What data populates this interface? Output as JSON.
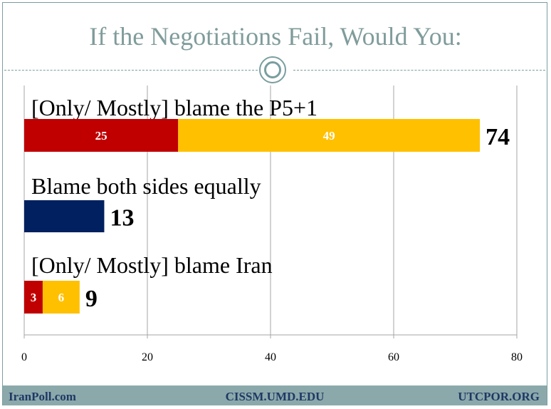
{
  "title": "If the Negotiations Fail, Would You:",
  "footer": {
    "left": "IranPoll.com",
    "center": "CISSM.UMD.EDU",
    "right": "UTCPOR.ORG"
  },
  "colors": {
    "only": "#c00000",
    "mostly": "#ffc000",
    "both": "#002060",
    "grid": "#a6a6a6",
    "title": "#7f9c9b",
    "footer_bg": "#8ba9ab",
    "footer_text": "#1f3864"
  },
  "chart_data": {
    "type": "bar",
    "orientation": "horizontal",
    "stacked": true,
    "xlim": [
      0,
      80
    ],
    "xticks": [
      0,
      20,
      40,
      60,
      80
    ],
    "grid": true,
    "categories": [
      {
        "label": "[Only/ Mostly] blame the P5+1",
        "segments": [
          {
            "value": 25,
            "label": "25",
            "color": "#c00000"
          },
          {
            "value": 49,
            "label": "49",
            "color": "#ffc000"
          }
        ],
        "total": 74,
        "total_label": "74"
      },
      {
        "label": "Blame both sides equally",
        "segments": [
          {
            "value": 13,
            "label": "",
            "color": "#002060"
          }
        ],
        "total": 13,
        "total_label": "13"
      },
      {
        "label": "[Only/ Mostly] blame Iran",
        "segments": [
          {
            "value": 3,
            "label": "3",
            "color": "#c00000"
          },
          {
            "value": 6,
            "label": "6",
            "color": "#ffc000"
          }
        ],
        "total": 9,
        "total_label": "9"
      }
    ]
  }
}
